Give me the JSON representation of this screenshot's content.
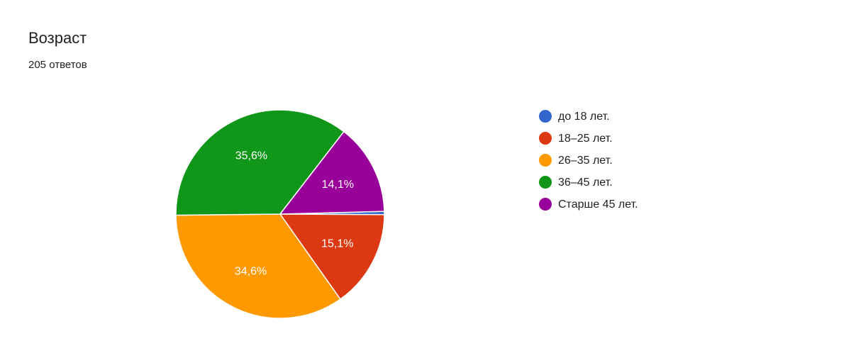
{
  "chart_data": {
    "type": "pie",
    "title": "Возраст",
    "subtitle": "205 ответов",
    "categories": [
      "до 18 лет.",
      "18–25 лет.",
      "26–35 лет.",
      "36–45 лет.",
      "Старше 45 лет."
    ],
    "values": [
      0.5,
      15.1,
      34.6,
      35.6,
      14.1
    ],
    "value_labels": [
      null,
      "15,1%",
      "34,6%",
      "35,6%",
      "14,1%"
    ],
    "colors": [
      "#3366cc",
      "#dc3912",
      "#ff9900",
      "#109618",
      "#990099"
    ]
  }
}
